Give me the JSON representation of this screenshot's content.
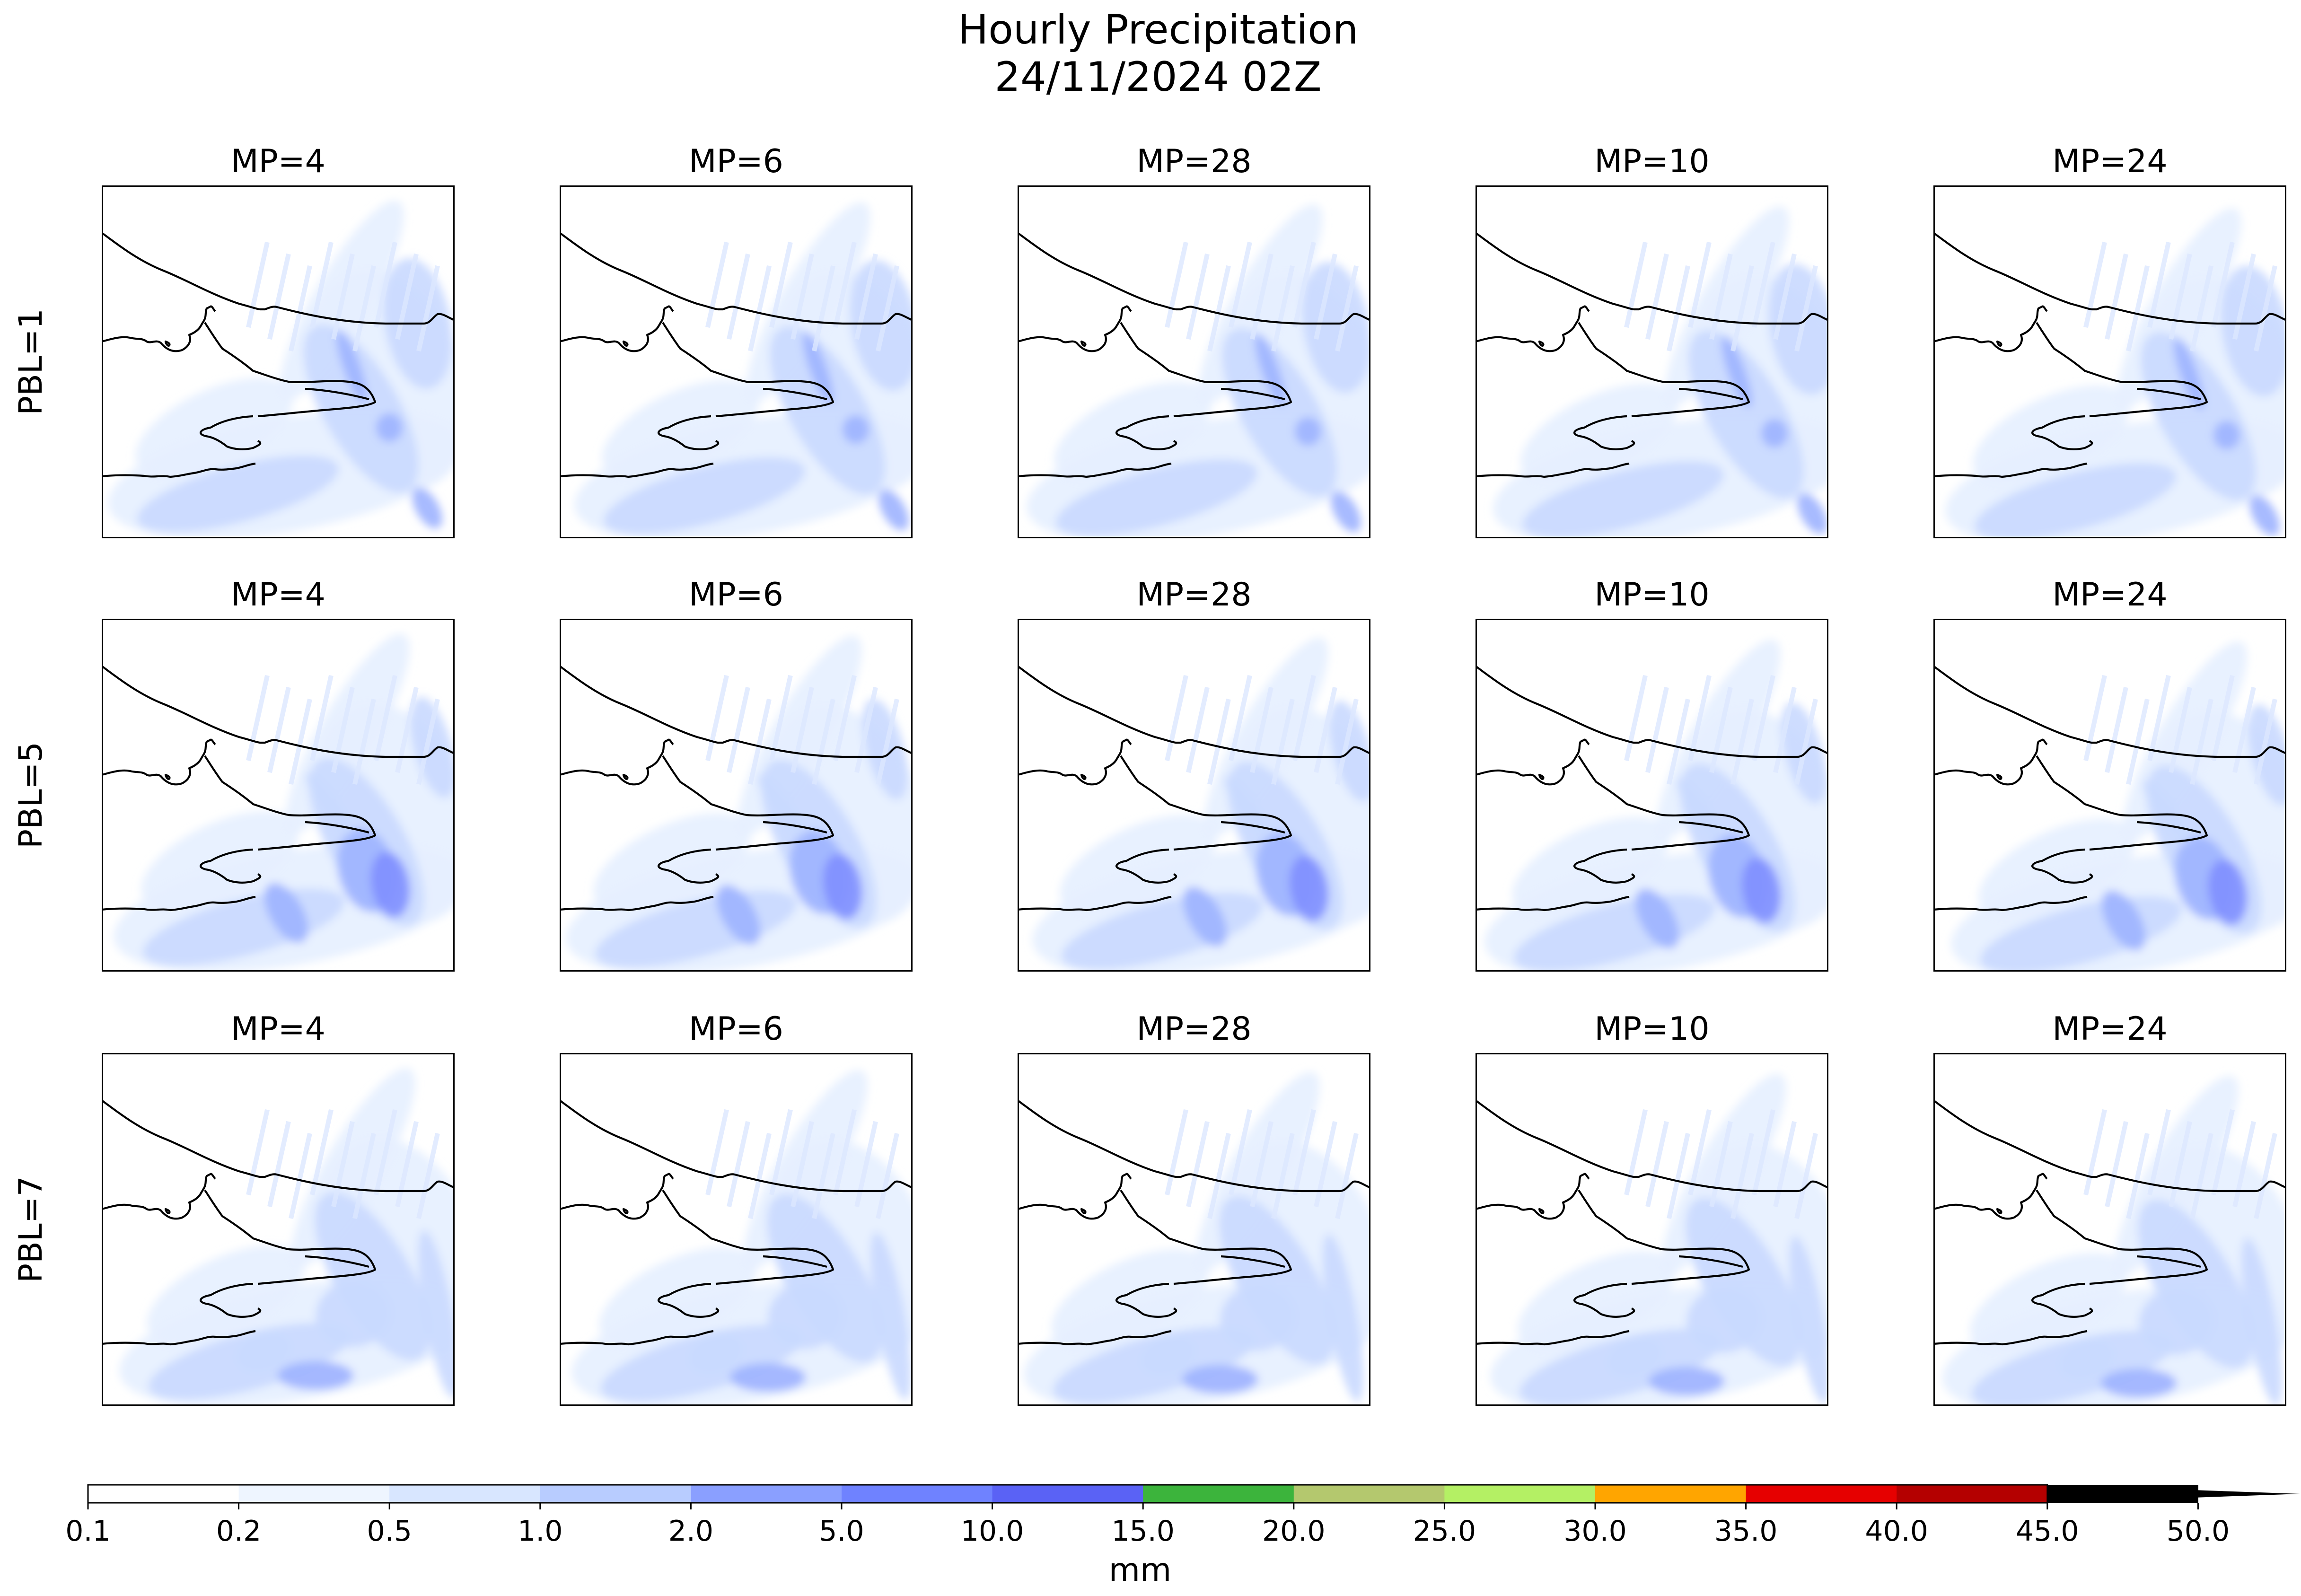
{
  "figure": {
    "title_line1": "Hourly Precipitation",
    "title_line2": "24/11/2024 02Z"
  },
  "columns": [
    {
      "label": "MP=4"
    },
    {
      "label": "MP=6"
    },
    {
      "label": "MP=28"
    },
    {
      "label": "MP=10"
    },
    {
      "label": "MP=24"
    }
  ],
  "rows": [
    {
      "label": "PBL=1"
    },
    {
      "label": "PBL=5"
    },
    {
      "label": "PBL=7"
    }
  ],
  "colorbar": {
    "unit_label": "mm",
    "ticks": [
      "0.1",
      "0.2",
      "0.5",
      "1.0",
      "2.0",
      "5.0",
      "10.0",
      "15.0",
      "20.0",
      "25.0",
      "30.0",
      "35.0",
      "40.0",
      "45.0",
      "50.0"
    ],
    "colors": [
      "#ffffff",
      "#eef5ff",
      "#d8e6ff",
      "#b8ccff",
      "#8a9fff",
      "#6f82ff",
      "#5a62f5",
      "#3cb43c",
      "#b4c86e",
      "#b4f064",
      "#ffa500",
      "#e60000",
      "#b40000",
      "#000000"
    ],
    "extend": "max"
  }
}
